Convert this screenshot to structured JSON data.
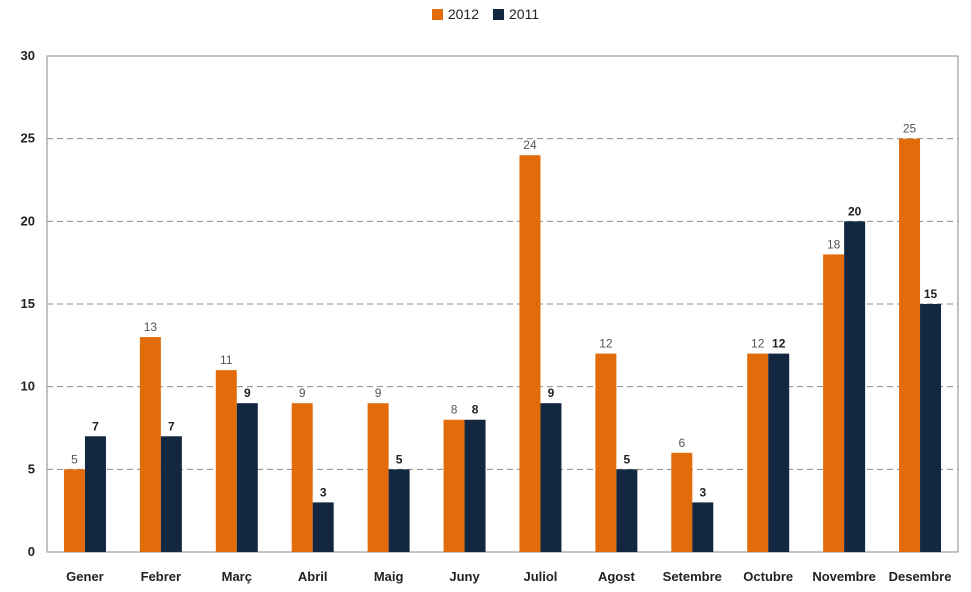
{
  "chart_data": {
    "type": "bar",
    "title": "",
    "xlabel": "",
    "ylabel": "",
    "ylim": [
      0,
      30
    ],
    "yticks": [
      0,
      5,
      10,
      15,
      20,
      25,
      30
    ],
    "grid": "horizontal-dashed",
    "legend_position": "top-center",
    "categories": [
      "Gener",
      "Febrer",
      "Març",
      "Abril",
      "Maig",
      "Juny",
      "Juliol",
      "Agost",
      "Setembre",
      "Octubre",
      "Novembre",
      "Desembre"
    ],
    "series": [
      {
        "name": "2012",
        "color": "#E36C0A",
        "values": [
          5,
          13,
          11,
          9,
          9,
          8,
          24,
          12,
          6,
          12,
          18,
          25
        ]
      },
      {
        "name": "2011",
        "color": "#132741",
        "values": [
          7,
          7,
          9,
          3,
          5,
          8,
          9,
          5,
          3,
          12,
          20,
          15
        ]
      }
    ]
  }
}
